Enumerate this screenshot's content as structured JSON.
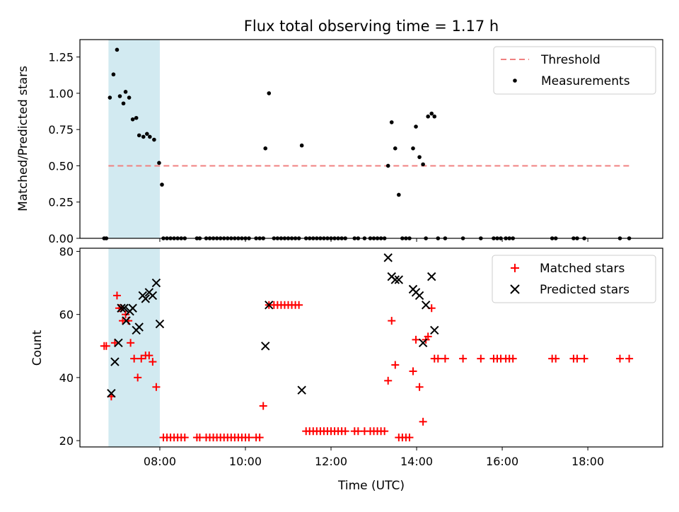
{
  "chart_data": [
    {
      "type": "scatter",
      "title": "Flux total observing time = 1.17 h",
      "xlabel": "",
      "ylabel": "Matched/Predicted stars",
      "xlim": [
        "06:08",
        "19:45"
      ],
      "ylim": [
        0,
        1.37
      ],
      "yticks": [
        0,
        0.25,
        0.5,
        0.75,
        1.0,
        1.25
      ],
      "ytick_labels": [
        "0.00",
        "0.25",
        "0.50",
        "0.75",
        "1.00",
        "1.25"
      ],
      "shaded_region": {
        "start": "06:48",
        "end": "08:00",
        "color": "#add8e6"
      },
      "legend": {
        "placement": "top-right",
        "entries": [
          "Threshold",
          "Measurements"
        ]
      },
      "series": [
        {
          "name": "Threshold",
          "kind": "line",
          "color": "#f08080",
          "style": "dashed",
          "points": [
            [
              "06:48",
              0.5
            ],
            [
              "18:58",
              0.5
            ]
          ]
        },
        {
          "name": "Measurements",
          "kind": "scatter",
          "color": "#000000",
          "points": [
            [
              "06:42",
              0
            ],
            [
              "06:45",
              0
            ],
            [
              "06:50",
              0.97
            ],
            [
              "06:55",
              1.13
            ],
            [
              "07:00",
              1.3
            ],
            [
              "07:04",
              0.98
            ],
            [
              "07:09",
              0.93
            ],
            [
              "07:12",
              1.01
            ],
            [
              "07:17",
              0.97
            ],
            [
              "07:22",
              0.82
            ],
            [
              "07:27",
              0.83
            ],
            [
              "07:31",
              0.71
            ],
            [
              "07:37",
              0.7
            ],
            [
              "07:42",
              0.72
            ],
            [
              "07:46",
              0.7
            ],
            [
              "07:52",
              0.68
            ],
            [
              "07:59",
              0.52
            ],
            [
              "08:03",
              0.37
            ],
            [
              "08:05",
              0
            ],
            [
              "08:10",
              0
            ],
            [
              "08:15",
              0
            ],
            [
              "08:20",
              0
            ],
            [
              "08:25",
              0
            ],
            [
              "08:30",
              0
            ],
            [
              "08:35",
              0
            ],
            [
              "08:52",
              0
            ],
            [
              "08:56",
              0
            ],
            [
              "09:05",
              0
            ],
            [
              "09:10",
              0
            ],
            [
              "09:15",
              0
            ],
            [
              "09:20",
              0
            ],
            [
              "09:25",
              0
            ],
            [
              "09:30",
              0
            ],
            [
              "09:35",
              0
            ],
            [
              "09:40",
              0
            ],
            [
              "09:45",
              0
            ],
            [
              "09:50",
              0
            ],
            [
              "09:55",
              0
            ],
            [
              "10:00",
              0
            ],
            [
              "10:05",
              0
            ],
            [
              "10:15",
              0
            ],
            [
              "10:20",
              0
            ],
            [
              "10:25",
              0
            ],
            [
              "10:28",
              0.62
            ],
            [
              "10:33",
              1.0
            ],
            [
              "10:40",
              0
            ],
            [
              "10:45",
              0
            ],
            [
              "10:50",
              0
            ],
            [
              "10:55",
              0
            ],
            [
              "11:00",
              0
            ],
            [
              "11:05",
              0
            ],
            [
              "11:10",
              0
            ],
            [
              "11:15",
              0
            ],
            [
              "11:19",
              0.64
            ],
            [
              "11:25",
              0
            ],
            [
              "11:30",
              0
            ],
            [
              "11:35",
              0
            ],
            [
              "11:40",
              0
            ],
            [
              "11:45",
              0
            ],
            [
              "11:50",
              0
            ],
            [
              "11:55",
              0
            ],
            [
              "12:00",
              0
            ],
            [
              "12:05",
              0
            ],
            [
              "12:10",
              0
            ],
            [
              "12:15",
              0
            ],
            [
              "12:20",
              0
            ],
            [
              "12:33",
              0
            ],
            [
              "12:38",
              0
            ],
            [
              "12:47",
              0
            ],
            [
              "12:55",
              0
            ],
            [
              "13:00",
              0
            ],
            [
              "13:05",
              0
            ],
            [
              "13:10",
              0
            ],
            [
              "13:15",
              0
            ],
            [
              "13:20",
              0.5
            ],
            [
              "13:25",
              0.8
            ],
            [
              "13:30",
              0.62
            ],
            [
              "13:35",
              0.3
            ],
            [
              "13:40",
              0
            ],
            [
              "13:45",
              0
            ],
            [
              "13:50",
              0
            ],
            [
              "13:55",
              0.62
            ],
            [
              "13:59",
              0.77
            ],
            [
              "14:04",
              0.56
            ],
            [
              "14:09",
              0.51
            ],
            [
              "14:13",
              0
            ],
            [
              "14:16",
              0.84
            ],
            [
              "14:21",
              0.86
            ],
            [
              "14:25",
              0.84
            ],
            [
              "14:30",
              0
            ],
            [
              "14:40",
              0
            ],
            [
              "15:05",
              0
            ],
            [
              "15:30",
              0
            ],
            [
              "15:48",
              0
            ],
            [
              "15:53",
              0
            ],
            [
              "15:58",
              0
            ],
            [
              "16:05",
              0
            ],
            [
              "16:10",
              0
            ],
            [
              "16:15",
              0
            ],
            [
              "17:10",
              0
            ],
            [
              "17:15",
              0
            ],
            [
              "17:40",
              0
            ],
            [
              "17:45",
              0
            ],
            [
              "17:55",
              0
            ],
            [
              "18:45",
              0
            ],
            [
              "18:58",
              0
            ]
          ]
        }
      ]
    },
    {
      "type": "scatter",
      "title": "",
      "xlabel": "Time (UTC)",
      "ylabel": "Count",
      "xlim": [
        "06:08",
        "19:45"
      ],
      "ylim": [
        18,
        81
      ],
      "yticks": [
        20,
        40,
        60,
        80
      ],
      "ytick_labels": [
        "20",
        "40",
        "60",
        "80"
      ],
      "xticks": [
        "08:00",
        "10:00",
        "12:00",
        "14:00",
        "16:00",
        "18:00"
      ],
      "shaded_region": {
        "start": "06:48",
        "end": "08:00",
        "color": "#add8e6"
      },
      "legend": {
        "placement": "top-right",
        "entries": [
          "Matched stars",
          "Predicted stars"
        ]
      },
      "series": [
        {
          "name": "Matched stars",
          "kind": "plus",
          "color": "#ff0000",
          "points": [
            [
              "06:42",
              50
            ],
            [
              "06:45",
              50
            ],
            [
              "06:52",
              34
            ],
            [
              "06:57",
              51
            ],
            [
              "07:00",
              66
            ],
            [
              "07:03",
              62
            ],
            [
              "07:06",
              62
            ],
            [
              "07:08",
              58
            ],
            [
              "07:12",
              60
            ],
            [
              "07:16",
              58
            ],
            [
              "07:19",
              51
            ],
            [
              "07:24",
              46
            ],
            [
              "07:29",
              40
            ],
            [
              "07:34",
              46
            ],
            [
              "07:40",
              47
            ],
            [
              "07:45",
              47
            ],
            [
              "07:50",
              45
            ],
            [
              "07:55",
              37
            ],
            [
              "08:05",
              21
            ],
            [
              "08:10",
              21
            ],
            [
              "08:15",
              21
            ],
            [
              "08:20",
              21
            ],
            [
              "08:25",
              21
            ],
            [
              "08:30",
              21
            ],
            [
              "08:35",
              21
            ],
            [
              "08:52",
              21
            ],
            [
              "08:56",
              21
            ],
            [
              "09:05",
              21
            ],
            [
              "09:10",
              21
            ],
            [
              "09:15",
              21
            ],
            [
              "09:20",
              21
            ],
            [
              "09:25",
              21
            ],
            [
              "09:30",
              21
            ],
            [
              "09:35",
              21
            ],
            [
              "09:40",
              21
            ],
            [
              "09:45",
              21
            ],
            [
              "09:50",
              21
            ],
            [
              "09:55",
              21
            ],
            [
              "10:00",
              21
            ],
            [
              "10:05",
              21
            ],
            [
              "10:15",
              21
            ],
            [
              "10:20",
              21
            ],
            [
              "10:25",
              31
            ],
            [
              "10:33",
              63
            ],
            [
              "10:40",
              63
            ],
            [
              "10:45",
              63
            ],
            [
              "10:50",
              63
            ],
            [
              "10:55",
              63
            ],
            [
              "11:00",
              63
            ],
            [
              "11:05",
              63
            ],
            [
              "11:10",
              63
            ],
            [
              "11:15",
              63
            ],
            [
              "11:25",
              23
            ],
            [
              "11:30",
              23
            ],
            [
              "11:35",
              23
            ],
            [
              "11:40",
              23
            ],
            [
              "11:45",
              23
            ],
            [
              "11:50",
              23
            ],
            [
              "11:55",
              23
            ],
            [
              "12:00",
              23
            ],
            [
              "12:05",
              23
            ],
            [
              "12:10",
              23
            ],
            [
              "12:15",
              23
            ],
            [
              "12:20",
              23
            ],
            [
              "12:33",
              23
            ],
            [
              "12:38",
              23
            ],
            [
              "12:47",
              23
            ],
            [
              "12:55",
              23
            ],
            [
              "13:00",
              23
            ],
            [
              "13:05",
              23
            ],
            [
              "13:10",
              23
            ],
            [
              "13:15",
              23
            ],
            [
              "13:20",
              39
            ],
            [
              "13:25",
              58
            ],
            [
              "13:30",
              44
            ],
            [
              "13:35",
              21
            ],
            [
              "13:40",
              21
            ],
            [
              "13:45",
              21
            ],
            [
              "13:50",
              21
            ],
            [
              "13:55",
              42
            ],
            [
              "13:59",
              52
            ],
            [
              "14:04",
              37
            ],
            [
              "14:09",
              26
            ],
            [
              "14:13",
              52
            ],
            [
              "14:16",
              53
            ],
            [
              "14:21",
              62
            ],
            [
              "14:25",
              46
            ],
            [
              "14:30",
              46
            ],
            [
              "14:40",
              46
            ],
            [
              "15:05",
              46
            ],
            [
              "15:30",
              46
            ],
            [
              "15:48",
              46
            ],
            [
              "15:53",
              46
            ],
            [
              "15:58",
              46
            ],
            [
              "16:05",
              46
            ],
            [
              "16:10",
              46
            ],
            [
              "16:15",
              46
            ],
            [
              "17:10",
              46
            ],
            [
              "17:15",
              46
            ],
            [
              "17:40",
              46
            ],
            [
              "17:45",
              46
            ],
            [
              "17:55",
              46
            ],
            [
              "18:45",
              46
            ],
            [
              "18:58",
              46
            ]
          ]
        },
        {
          "name": "Predicted stars",
          "kind": "x",
          "color": "#000000",
          "points": [
            [
              "06:52",
              35
            ],
            [
              "06:57",
              45
            ],
            [
              "07:02",
              51
            ],
            [
              "07:06",
              62
            ],
            [
              "07:10",
              62
            ],
            [
              "07:13",
              58
            ],
            [
              "07:18",
              61
            ],
            [
              "07:22",
              62
            ],
            [
              "07:27",
              55
            ],
            [
              "07:31",
              56
            ],
            [
              "07:36",
              66
            ],
            [
              "07:40",
              65
            ],
            [
              "07:45",
              67
            ],
            [
              "07:50",
              66
            ],
            [
              "07:55",
              70
            ],
            [
              "08:00",
              57
            ],
            [
              "10:28",
              50
            ],
            [
              "10:33",
              63
            ],
            [
              "11:19",
              36
            ],
            [
              "13:20",
              78
            ],
            [
              "13:25",
              72
            ],
            [
              "13:30",
              71
            ],
            [
              "13:35",
              71
            ],
            [
              "13:55",
              68
            ],
            [
              "13:59",
              67
            ],
            [
              "14:04",
              66
            ],
            [
              "14:09",
              51
            ],
            [
              "14:13",
              63
            ],
            [
              "14:21",
              72
            ],
            [
              "14:25",
              55
            ]
          ]
        }
      ]
    }
  ]
}
